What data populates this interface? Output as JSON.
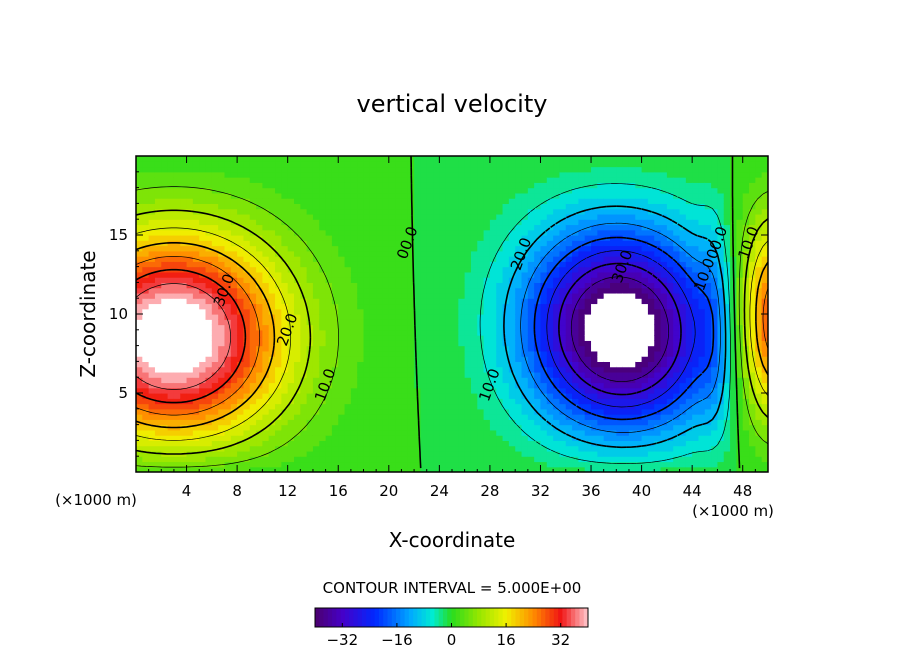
{
  "chart_data": {
    "type": "heatmap",
    "title": "vertical velocity",
    "xlabel": "X-coordinate",
    "ylabel": "Z-coordinate",
    "x_unit_left": "(×1000 m)",
    "x_unit_right": "(×1000 m)",
    "xlim": [
      0,
      50
    ],
    "ylim": [
      0,
      20
    ],
    "x_ticks": [
      "4",
      "8",
      "12",
      "16",
      "20",
      "24",
      "28",
      "32",
      "36",
      "40",
      "44",
      "48"
    ],
    "x_tick_values": [
      4,
      8,
      12,
      16,
      20,
      24,
      28,
      32,
      36,
      40,
      44,
      48
    ],
    "y_ticks": [
      "5",
      "10",
      "15"
    ],
    "y_tick_values": [
      5,
      10,
      15
    ],
    "contour_interval_text": "CONTOUR INTERVAL = 5.000E+00",
    "contour_interval": 5.0,
    "contour_labels": [
      {
        "text": "30.0",
        "x": 7.0,
        "z": 11.5
      },
      {
        "text": "20.0",
        "x": 12.0,
        "z": 9.0
      },
      {
        "text": "10.0",
        "x": 15.0,
        "z": 5.5
      },
      {
        "text": "00.0",
        "x": 21.5,
        "z": 14.5
      },
      {
        "text": "20.0",
        "x": 30.5,
        "z": 13.8
      },
      {
        "text": "30.0",
        "x": 38.5,
        "z": 13.0
      },
      {
        "text": "10.0",
        "x": 28.0,
        "z": 5.5
      },
      {
        "text": "10.0",
        "x": 45.0,
        "z": 12.5
      },
      {
        "text": "00.0",
        "x": 46.0,
        "z": 14.5
      },
      {
        "text": "10.0",
        "x": 48.5,
        "z": 14.5
      }
    ],
    "extrema": [
      {
        "kind": "max",
        "x": 2.5,
        "z": 8.0,
        "value": 40
      },
      {
        "kind": "min",
        "x": 38.0,
        "z": 8.5,
        "value": -40
      },
      {
        "kind": "max",
        "x": 50.0,
        "z": 9.5,
        "value": 25
      }
    ],
    "colorbar": {
      "range": [
        -40,
        40
      ],
      "ticks": [
        "-32",
        "-16",
        "0",
        "16",
        "32"
      ],
      "tick_values": [
        -32,
        -16,
        0,
        16,
        32
      ]
    }
  }
}
